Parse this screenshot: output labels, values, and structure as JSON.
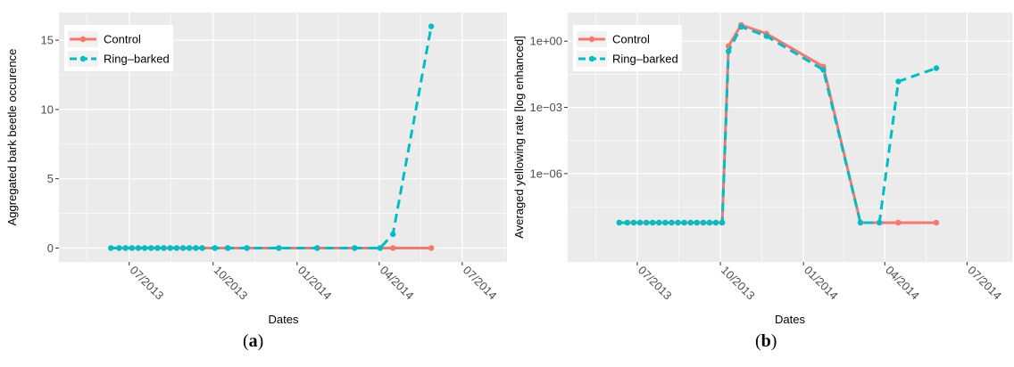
{
  "figure": {
    "captions": [
      {
        "open": "(",
        "letter": "a",
        "close": ")"
      },
      {
        "open": "(",
        "letter": "b",
        "close": ")"
      }
    ]
  },
  "colors": {
    "panel_bg": "#ebebeb",
    "grid": "#ffffff",
    "control": "#f8766d",
    "ring_barked": "#00bfc4"
  },
  "chart_data": [
    {
      "type": "line",
      "xlabel": "Dates",
      "ylabel": "Aggregated bark beetle occurence",
      "x_type": "date",
      "xlim": [
        "2013-04-15",
        "2014-08-20"
      ],
      "x_ticks": [
        {
          "date": "2013-07-01",
          "label": "07/2013"
        },
        {
          "date": "2013-10-01",
          "label": "10/2013"
        },
        {
          "date": "2014-01-01",
          "label": "01/2014"
        },
        {
          "date": "2014-04-01",
          "label": "04/2014"
        },
        {
          "date": "2014-07-01",
          "label": "07/2014"
        }
      ],
      "y_scale": "linear",
      "ylim": [
        -1.0,
        17.0
      ],
      "y_ticks": [
        {
          "value": 0,
          "label": "0"
        },
        {
          "value": 5,
          "label": "5"
        },
        {
          "value": 10,
          "label": "10"
        },
        {
          "value": 15,
          "label": "15"
        }
      ],
      "legend": {
        "position": "top-left"
      },
      "grid": true,
      "series": [
        {
          "name": "Control",
          "color": "#f8766d",
          "dash": "solid",
          "points": [
            [
              "2013-06-11",
              0
            ],
            [
              "2013-06-20",
              0
            ],
            [
              "2013-06-27",
              0
            ],
            [
              "2013-07-04",
              0
            ],
            [
              "2013-07-11",
              0
            ],
            [
              "2013-07-18",
              0
            ],
            [
              "2013-07-25",
              0
            ],
            [
              "2013-08-01",
              0
            ],
            [
              "2013-08-08",
              0
            ],
            [
              "2013-08-15",
              0
            ],
            [
              "2013-08-22",
              0
            ],
            [
              "2013-08-29",
              0
            ],
            [
              "2013-09-05",
              0
            ],
            [
              "2013-09-12",
              0
            ],
            [
              "2013-09-19",
              0
            ],
            [
              "2013-10-03",
              0
            ],
            [
              "2013-10-17",
              0
            ],
            [
              "2013-11-07",
              0
            ],
            [
              "2013-12-12",
              0
            ],
            [
              "2014-01-23",
              0
            ],
            [
              "2014-03-05",
              0
            ],
            [
              "2014-04-02",
              0
            ],
            [
              "2014-04-16",
              0
            ],
            [
              "2014-05-28",
              0
            ]
          ]
        },
        {
          "name": "Ring–barked",
          "color": "#00bfc4",
          "dash": "dashed",
          "points": [
            [
              "2013-06-11",
              0
            ],
            [
              "2013-06-20",
              0
            ],
            [
              "2013-06-27",
              0
            ],
            [
              "2013-07-04",
              0
            ],
            [
              "2013-07-11",
              0
            ],
            [
              "2013-07-18",
              0
            ],
            [
              "2013-07-25",
              0
            ],
            [
              "2013-08-01",
              0
            ],
            [
              "2013-08-08",
              0
            ],
            [
              "2013-08-15",
              0
            ],
            [
              "2013-08-22",
              0
            ],
            [
              "2013-08-29",
              0
            ],
            [
              "2013-09-05",
              0
            ],
            [
              "2013-09-12",
              0
            ],
            [
              "2013-09-19",
              0
            ],
            [
              "2013-10-03",
              0
            ],
            [
              "2013-10-17",
              0
            ],
            [
              "2013-11-07",
              0
            ],
            [
              "2013-12-12",
              0
            ],
            [
              "2014-01-23",
              0
            ],
            [
              "2014-03-05",
              0
            ],
            [
              "2014-04-02",
              0
            ],
            [
              "2014-04-16",
              1
            ],
            [
              "2014-05-28",
              16
            ]
          ]
        }
      ]
    },
    {
      "type": "line",
      "xlabel": "Dates",
      "ylabel": "Averaged yellowing rate [log enhanced]",
      "x_type": "date",
      "xlim": [
        "2013-04-15",
        "2014-08-20"
      ],
      "x_ticks": [
        {
          "date": "2013-07-01",
          "label": "07/2013"
        },
        {
          "date": "2013-10-01",
          "label": "10/2013"
        },
        {
          "date": "2014-01-01",
          "label": "01/2014"
        },
        {
          "date": "2014-04-01",
          "label": "04/2014"
        },
        {
          "date": "2014-07-01",
          "label": "07/2014"
        }
      ],
      "y_scale": "log10",
      "ylim": [
        1e-10,
        20
      ],
      "y_ticks": [
        {
          "value": 1e-06,
          "label": "1e−06"
        },
        {
          "value": 0.001,
          "label": "1e−03"
        },
        {
          "value": 1,
          "label": "1e+00"
        }
      ],
      "legend": {
        "position": "top-left"
      },
      "grid": true,
      "series": [
        {
          "name": "Control",
          "color": "#f8766d",
          "dash": "solid",
          "points": [
            [
              "2013-06-11",
              6e-09
            ],
            [
              "2013-06-20",
              6e-09
            ],
            [
              "2013-06-27",
              6e-09
            ],
            [
              "2013-07-04",
              6e-09
            ],
            [
              "2013-07-11",
              6e-09
            ],
            [
              "2013-07-18",
              6e-09
            ],
            [
              "2013-07-25",
              6e-09
            ],
            [
              "2013-08-01",
              6e-09
            ],
            [
              "2013-08-08",
              6e-09
            ],
            [
              "2013-08-15",
              6e-09
            ],
            [
              "2013-08-22",
              6e-09
            ],
            [
              "2013-08-29",
              6e-09
            ],
            [
              "2013-09-05",
              6e-09
            ],
            [
              "2013-09-12",
              6e-09
            ],
            [
              "2013-09-19",
              6e-09
            ],
            [
              "2013-09-26",
              6e-09
            ],
            [
              "2013-10-03",
              6e-09
            ],
            [
              "2013-10-10",
              0.6
            ],
            [
              "2013-10-24",
              5.5
            ],
            [
              "2013-11-21",
              2.2
            ],
            [
              "2014-01-23",
              0.07
            ],
            [
              "2014-03-05",
              6e-09
            ],
            [
              "2014-03-26",
              6e-09
            ],
            [
              "2014-04-16",
              6e-09
            ],
            [
              "2014-05-28",
              6e-09
            ]
          ]
        },
        {
          "name": "Ring–barked",
          "color": "#00bfc4",
          "dash": "dashed",
          "points": [
            [
              "2013-06-11",
              6e-09
            ],
            [
              "2013-06-20",
              6e-09
            ],
            [
              "2013-06-27",
              6e-09
            ],
            [
              "2013-07-04",
              6e-09
            ],
            [
              "2013-07-11",
              6e-09
            ],
            [
              "2013-07-18",
              6e-09
            ],
            [
              "2013-07-25",
              6e-09
            ],
            [
              "2013-08-01",
              6e-09
            ],
            [
              "2013-08-08",
              6e-09
            ],
            [
              "2013-08-15",
              6e-09
            ],
            [
              "2013-08-22",
              6e-09
            ],
            [
              "2013-08-29",
              6e-09
            ],
            [
              "2013-09-05",
              6e-09
            ],
            [
              "2013-09-12",
              6e-09
            ],
            [
              "2013-09-19",
              6e-09
            ],
            [
              "2013-09-26",
              6e-09
            ],
            [
              "2013-10-03",
              6e-09
            ],
            [
              "2013-10-10",
              0.35
            ],
            [
              "2013-10-24",
              4.5
            ],
            [
              "2013-11-21",
              1.7
            ],
            [
              "2014-01-23",
              0.05
            ],
            [
              "2014-03-05",
              6e-09
            ],
            [
              "2014-03-26",
              6e-09
            ],
            [
              "2014-04-16",
              0.015
            ],
            [
              "2014-05-28",
              0.06
            ]
          ]
        }
      ]
    }
  ]
}
